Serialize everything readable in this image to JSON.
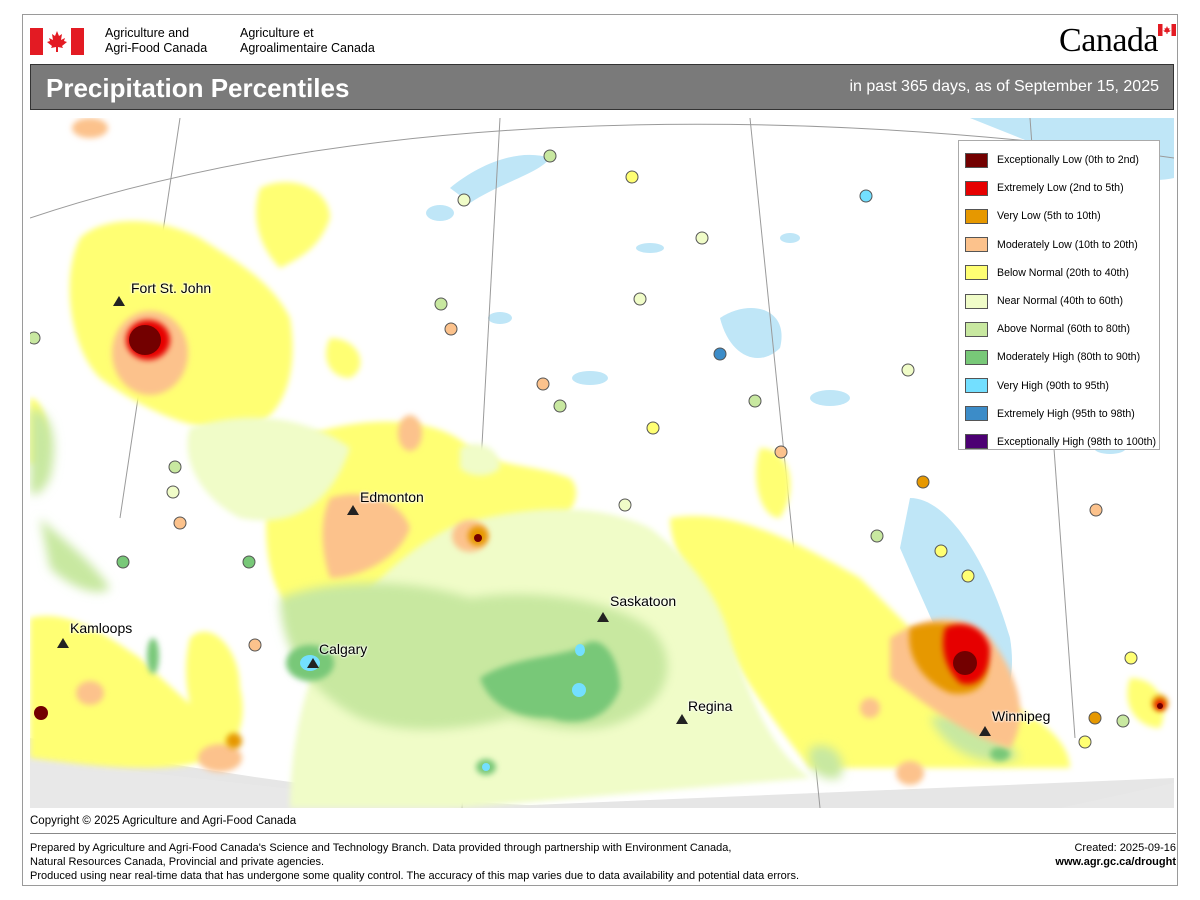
{
  "header": {
    "department_en": [
      "Agriculture and",
      "Agri-Food Canada"
    ],
    "department_fr": [
      "Agriculture et",
      "Agroalimentaire Canada"
    ],
    "wordmark": "Canada"
  },
  "title": {
    "main": "Precipitation Percentiles",
    "subtitle": "in past 365 days, as of September 15, 2025"
  },
  "legend": {
    "items": [
      {
        "label": "Exceptionally Low (0th to 2nd)",
        "color": "#730000"
      },
      {
        "label": "Extremely Low (2nd to 5th)",
        "color": "#e60000"
      },
      {
        "label": "Very Low (5th to 10th)",
        "color": "#e69800"
      },
      {
        "label": "Moderately Low (10th to 20th)",
        "color": "#fcc28c"
      },
      {
        "label": "Below Normal (20th to 40th)",
        "color": "#ffff73"
      },
      {
        "label": "Near Normal (40th to 60th)",
        "color": "#f0fcc8"
      },
      {
        "label": "Above Normal (60th to 80th)",
        "color": "#c8e8a0"
      },
      {
        "label": "Moderately High (80th to 90th)",
        "color": "#78c878"
      },
      {
        "label": "Very High (90th to 95th)",
        "color": "#73dfff"
      },
      {
        "label": "Extremely High (95th to 98th)",
        "color": "#3c8cc8"
      },
      {
        "label": "Exceptionally High (98th to 100th)",
        "color": "#4c0073"
      }
    ]
  },
  "cities": [
    {
      "name": "Fort St. John"
    },
    {
      "name": "Edmonton"
    },
    {
      "name": "Kamloops"
    },
    {
      "name": "Calgary"
    },
    {
      "name": "Saskatoon"
    },
    {
      "name": "Regina"
    },
    {
      "name": "Winnipeg"
    }
  ],
  "copyright": "Copyright © 2025 Agriculture and Agri-Food Canada",
  "footer": {
    "lines": [
      "Prepared by Agriculture and Agri-Food Canada's Science and Technology Branch. Data provided through partnership with Environment Canada,",
      "Natural Resources Canada, Provincial and private agencies.",
      "Produced using near real-time data that has undergone some quality control. The accuracy of this map varies due to data availability and potential data errors."
    ],
    "created": "Created: 2025-09-16",
    "url": "www.agr.gc.ca/drought"
  }
}
